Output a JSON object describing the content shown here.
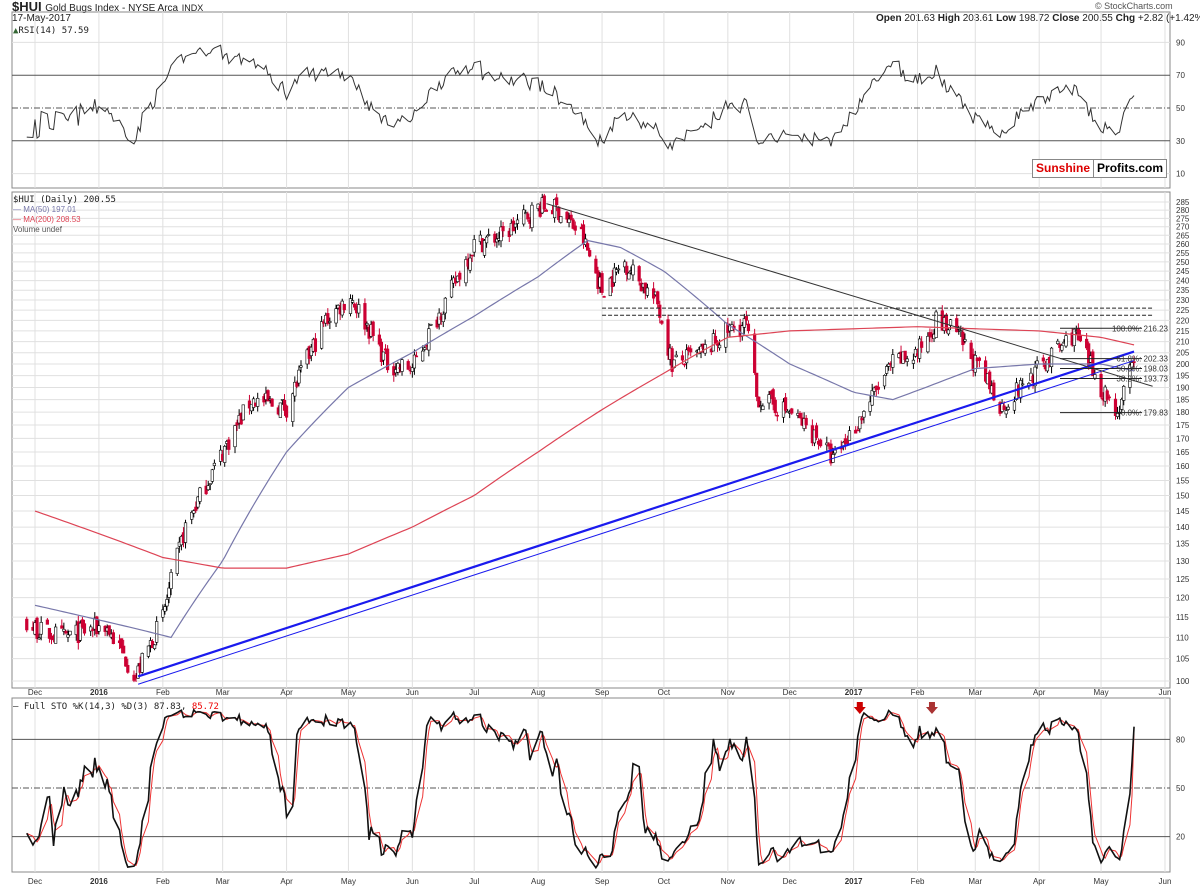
{
  "header": {
    "symbol": "$HUI",
    "name": "Gold Bugs Index - NYSE Arca",
    "exchange": "INDX",
    "date": "17-May-2017",
    "credit": "© StockCharts.com",
    "open_label": "Open",
    "open": "201.63",
    "high_label": "High",
    "high": "203.61",
    "low_label": "Low",
    "low": "198.72",
    "close_label": "Close",
    "close": "200.55",
    "chg_label": "Chg",
    "chg": "+2.82 (+1.42%)"
  },
  "logo": {
    "part1": "Sunshine",
    "part2": "Profits.com"
  },
  "colors": {
    "up": "#ffffff",
    "down": "#cc0033",
    "ma50": "#7777aa",
    "ma200": "#dd4455",
    "trend": "#1a1aee",
    "grid": "#e0e0e0"
  },
  "rsi": {
    "label": "RSI(14) 57.59",
    "levels": [
      90,
      70,
      50,
      30,
      10
    ]
  },
  "price": {
    "legend": "$HUI (Daily) 200.55",
    "ma50_label": "MA(50) 197.01",
    "ma200_label": "MA(200) 208.53",
    "volume_label": "Volume undef"
  },
  "sto": {
    "label_k": "Full STO %K(14,3) %D(3) 87.83,",
    "label_d": "85.72",
    "levels": [
      80,
      50,
      20
    ]
  },
  "fib": [
    {
      "label": "100.0%: 216.23",
      "v": 216.23
    },
    {
      "label": "61.8%: 202.33",
      "v": 202.33
    },
    {
      "label": "50.0%: 198.03",
      "v": 198.03
    },
    {
      "label": "38.2%: 193.73",
      "v": 193.73
    },
    {
      "label": "0.0%: 179.83",
      "v": 179.83
    }
  ],
  "chart_data": {
    "type": "candlestick",
    "title": "$HUI Gold Bugs Index - NYSE Arca INDX (Daily)",
    "yscale": "log",
    "ylim": [
      98,
      288
    ],
    "yticks": [
      100,
      105,
      110,
      115,
      120,
      125,
      130,
      135,
      140,
      145,
      150,
      155,
      160,
      165,
      170,
      175,
      180,
      185,
      190,
      195,
      200,
      205,
      210,
      215,
      220,
      225,
      230,
      235,
      240,
      245,
      250,
      255,
      260,
      265,
      270,
      275,
      280,
      285
    ],
    "xticks": [
      {
        "d": "2015-12-01",
        "l": "Dec"
      },
      {
        "d": "2016-01-01",
        "l": "2016",
        "bold": true
      },
      {
        "d": "2016-02-01",
        "l": "Feb"
      },
      {
        "d": "2016-03-01",
        "l": "Mar"
      },
      {
        "d": "2016-04-01",
        "l": "Apr"
      },
      {
        "d": "2016-05-01",
        "l": "May"
      },
      {
        "d": "2016-06-01",
        "l": "Jun"
      },
      {
        "d": "2016-07-01",
        "l": "Jul"
      },
      {
        "d": "2016-08-01",
        "l": "Aug"
      },
      {
        "d": "2016-09-01",
        "l": "Sep"
      },
      {
        "d": "2016-10-01",
        "l": "Oct"
      },
      {
        "d": "2016-11-01",
        "l": "Nov"
      },
      {
        "d": "2016-12-01",
        "l": "Dec"
      },
      {
        "d": "2017-01-01",
        "l": "2017",
        "bold": true
      },
      {
        "d": "2017-02-01",
        "l": "Feb"
      },
      {
        "d": "2017-03-01",
        "l": "Mar"
      },
      {
        "d": "2017-04-01",
        "l": "Apr"
      },
      {
        "d": "2017-05-01",
        "l": "May"
      },
      {
        "d": "2017-06-01",
        "l": "Jun"
      }
    ],
    "close_anchors": [
      [
        "2015-11-01",
        120
      ],
      [
        "2015-12-01",
        112
      ],
      [
        "2015-12-15",
        110
      ],
      [
        "2016-01-04",
        113
      ],
      [
        "2016-01-19",
        101
      ],
      [
        "2016-02-01",
        115
      ],
      [
        "2016-02-12",
        140
      ],
      [
        "2016-03-01",
        165
      ],
      [
        "2016-03-15",
        185
      ],
      [
        "2016-04-01",
        182
      ],
      [
        "2016-04-20",
        220
      ],
      [
        "2016-05-02",
        232
      ],
      [
        "2016-05-20",
        200
      ],
      [
        "2016-06-01",
        198
      ],
      [
        "2016-06-20",
        235
      ],
      [
        "2016-07-01",
        260
      ],
      [
        "2016-07-15",
        265
      ],
      [
        "2016-08-01",
        282
      ],
      [
        "2016-08-10",
        281
      ],
      [
        "2016-08-22",
        265
      ],
      [
        "2016-09-01",
        235
      ],
      [
        "2016-09-12",
        250
      ],
      [
        "2016-09-28",
        228
      ],
      [
        "2016-10-05",
        200
      ],
      [
        "2016-10-20",
        205
      ],
      [
        "2016-11-01",
        215
      ],
      [
        "2016-11-10",
        218
      ],
      [
        "2016-11-15",
        186
      ],
      [
        "2016-12-01",
        180
      ],
      [
        "2016-12-15",
        170
      ],
      [
        "2016-12-22",
        162
      ],
      [
        "2017-01-03",
        176
      ],
      [
        "2017-01-20",
        200
      ],
      [
        "2017-02-01",
        205
      ],
      [
        "2017-02-10",
        220
      ],
      [
        "2017-02-20",
        214
      ],
      [
        "2017-03-01",
        200
      ],
      [
        "2017-03-14",
        182
      ],
      [
        "2017-04-03",
        200
      ],
      [
        "2017-04-18",
        214
      ],
      [
        "2017-05-01",
        190
      ],
      [
        "2017-05-09",
        180
      ],
      [
        "2017-05-17",
        200.55
      ]
    ],
    "ma50": [
      [
        "2015-12-01",
        118
      ],
      [
        "2016-01-20",
        112
      ],
      [
        "2016-02-05",
        110
      ],
      [
        "2016-03-01",
        130
      ],
      [
        "2016-04-01",
        165
      ],
      [
        "2016-05-01",
        190
      ],
      [
        "2016-06-01",
        205
      ],
      [
        "2016-07-01",
        222
      ],
      [
        "2016-08-01",
        242
      ],
      [
        "2016-08-25",
        262
      ],
      [
        "2016-09-10",
        258
      ],
      [
        "2016-10-01",
        245
      ],
      [
        "2016-11-01",
        218
      ],
      [
        "2016-12-01",
        200
      ],
      [
        "2017-01-01",
        188
      ],
      [
        "2017-01-20",
        185
      ],
      [
        "2017-02-05",
        190
      ],
      [
        "2017-03-01",
        198
      ],
      [
        "2017-04-01",
        200
      ],
      [
        "2017-05-01",
        200
      ],
      [
        "2017-05-17",
        197.01
      ]
    ],
    "ma200": [
      [
        "2015-12-01",
        145
      ],
      [
        "2016-01-01",
        138
      ],
      [
        "2016-02-01",
        131
      ],
      [
        "2016-03-01",
        128
      ],
      [
        "2016-04-01",
        128
      ],
      [
        "2016-05-01",
        132
      ],
      [
        "2016-06-01",
        140
      ],
      [
        "2016-07-01",
        150
      ],
      [
        "2016-08-01",
        165
      ],
      [
        "2016-09-01",
        181
      ],
      [
        "2016-10-01",
        196
      ],
      [
        "2016-10-20",
        206
      ],
      [
        "2016-11-01",
        212
      ],
      [
        "2016-12-01",
        215
      ],
      [
        "2017-01-01",
        216
      ],
      [
        "2017-02-01",
        217
      ],
      [
        "2017-03-01",
        216
      ],
      [
        "2017-04-01",
        215
      ],
      [
        "2017-05-01",
        212
      ],
      [
        "2017-05-17",
        208.53
      ]
    ],
    "trendlines": [
      {
        "name": "support-thick",
        "from": [
          "2016-01-20",
          101
        ],
        "to": [
          "2017-05-17",
          205.5
        ],
        "w": 2.2,
        "c": "#1a1aee"
      },
      {
        "name": "support-thin",
        "from": [
          "2016-01-20",
          99.3
        ],
        "to": [
          "2017-05-17",
          201.5
        ],
        "w": 1,
        "c": "#1a1aee"
      },
      {
        "name": "resistance",
        "from": [
          "2016-08-05",
          284
        ],
        "to": [
          "2017-05-26",
          190.5
        ],
        "w": 1,
        "c": "#333"
      }
    ],
    "dashed_levels": [
      {
        "v": 226,
        "from": "2016-09-01",
        "to": "2017-05-26"
      },
      {
        "v": 222.5,
        "from": "2016-09-01",
        "to": "2017-05-26"
      }
    ],
    "last_rsi": 57.59,
    "last_k": 87.83,
    "last_d": 85.72
  }
}
